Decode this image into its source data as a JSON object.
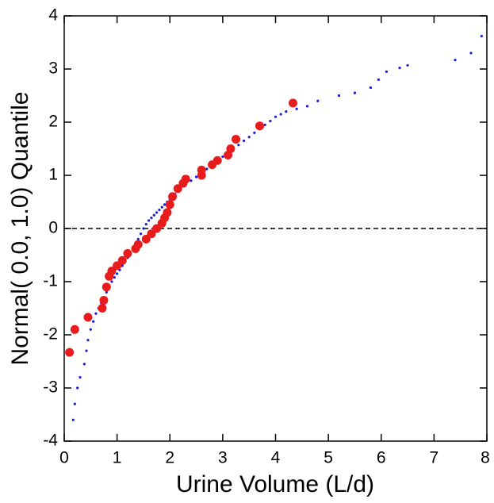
{
  "chart_data": {
    "type": "scatter",
    "x_label": "Urine Volume (L/d)",
    "y_label": "Normal( 0.0, 1.0) Quantile",
    "xlim": [
      0,
      8
    ],
    "ylim": [
      -4,
      4
    ],
    "xticks": [
      0,
      1,
      2,
      3,
      4,
      5,
      6,
      7,
      8
    ],
    "yticks": [
      -4,
      -3,
      -2,
      -1,
      0,
      1,
      2,
      3,
      4
    ],
    "reference_line": 0,
    "series": [
      {
        "color": "#1a1adb",
        "size": "small",
        "x": [
          0.17,
          0.2,
          0.25,
          0.3,
          0.38,
          0.42,
          0.45,
          0.5,
          0.55,
          0.6,
          0.65,
          0.7,
          0.75,
          0.8,
          0.85,
          0.9,
          0.95,
          1.0,
          1.05,
          1.1,
          1.15,
          1.2,
          1.25,
          1.3,
          1.35,
          1.4,
          1.45,
          1.5,
          1.55,
          1.6,
          1.65,
          1.7,
          1.75,
          1.8,
          1.85,
          1.9,
          1.95,
          2.0,
          2.05,
          2.1,
          2.15,
          2.2,
          2.3,
          2.4,
          2.5,
          2.6,
          2.7,
          2.8,
          2.9,
          3.0,
          3.1,
          3.2,
          3.3,
          3.4,
          3.5,
          3.6,
          3.7,
          3.8,
          3.9,
          4.0,
          4.1,
          4.2,
          4.4,
          4.6,
          4.8,
          5.2,
          5.5,
          5.8,
          5.95,
          6.1,
          6.35,
          6.5,
          7.4,
          7.7,
          7.9
        ],
        "values": [
          -3.6,
          -3.3,
          -3.0,
          -2.8,
          -2.55,
          -2.3,
          -2.1,
          -1.9,
          -1.75,
          -1.6,
          -1.5,
          -1.4,
          -1.3,
          -1.2,
          -1.1,
          -1.0,
          -0.92,
          -0.85,
          -0.78,
          -0.7,
          -0.62,
          -0.55,
          -0.48,
          -0.4,
          -0.3,
          -0.2,
          -0.1,
          0.0,
          0.08,
          0.15,
          0.2,
          0.25,
          0.3,
          0.35,
          0.4,
          0.45,
          0.5,
          0.55,
          0.6,
          0.65,
          0.7,
          0.75,
          0.82,
          0.9,
          0.97,
          1.05,
          1.12,
          1.2,
          1.27,
          1.35,
          1.42,
          1.5,
          1.57,
          1.65,
          1.72,
          1.8,
          1.87,
          1.95,
          2.02,
          2.1,
          2.15,
          2.2,
          2.25,
          2.3,
          2.4,
          2.5,
          2.55,
          2.65,
          2.8,
          2.95,
          3.02,
          3.07,
          3.17,
          3.3,
          3.62
        ]
      },
      {
        "color": "#e81c1c",
        "size": "large",
        "x": [
          0.1,
          0.2,
          0.45,
          0.72,
          0.75,
          0.8,
          0.85,
          0.9,
          1.0,
          1.1,
          1.2,
          1.35,
          1.4,
          1.55,
          1.65,
          1.75,
          1.85,
          1.9,
          1.95,
          2.0,
          2.05,
          2.15,
          2.25,
          2.3,
          2.6,
          2.6,
          2.8,
          2.9,
          3.1,
          3.15,
          3.25,
          3.7,
          4.33
        ],
        "values": [
          -2.33,
          -1.9,
          -1.67,
          -1.5,
          -1.35,
          -1.1,
          -0.9,
          -0.8,
          -0.7,
          -0.6,
          -0.47,
          -0.38,
          -0.3,
          -0.2,
          -0.1,
          0.0,
          0.1,
          0.2,
          0.3,
          0.45,
          0.6,
          0.75,
          0.85,
          0.93,
          1.0,
          1.1,
          1.2,
          1.28,
          1.38,
          1.5,
          1.68,
          1.93,
          2.36
        ]
      }
    ]
  }
}
